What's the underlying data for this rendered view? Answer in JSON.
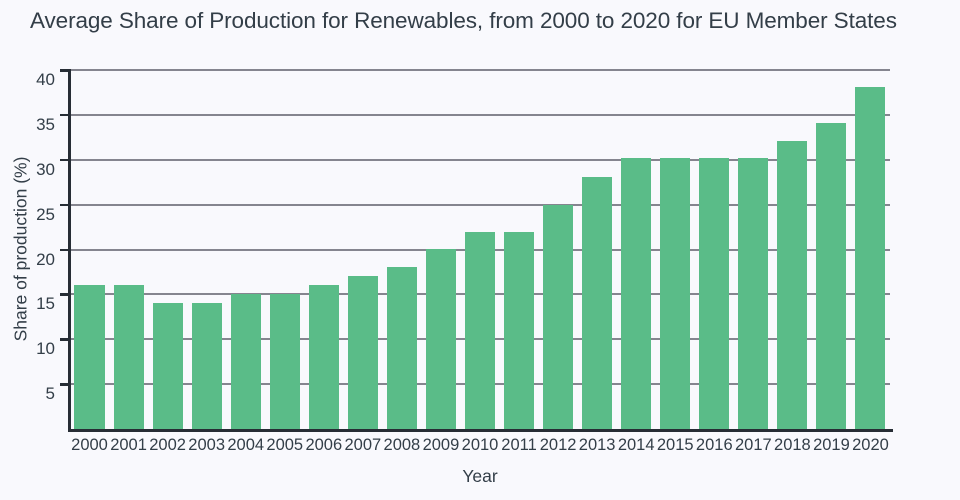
{
  "chart_data": {
    "type": "bar",
    "title": "Average Share of Production for Renewables, from 2000 to 2020 for EU Member States",
    "xlabel": "Year",
    "ylabel": "Share of production (%)",
    "categories": [
      "2000",
      "2001",
      "2002",
      "2003",
      "2004",
      "2005",
      "2006",
      "2007",
      "2008",
      "2009",
      "2010",
      "2011",
      "2012",
      "2013",
      "2014",
      "2015",
      "2016",
      "2017",
      "2018",
      "2019",
      "2020"
    ],
    "values": [
      16.1,
      16.1,
      14.0,
      14.0,
      15.0,
      15.0,
      16.1,
      17.1,
      18.0,
      20.1,
      22.0,
      22.0,
      25.0,
      28.1,
      30.2,
      30.2,
      30.2,
      30.2,
      32.1,
      34.1,
      38.1
    ],
    "ylim": [
      0,
      40
    ],
    "yticks": [
      5,
      10,
      15,
      20,
      25,
      30,
      35,
      40
    ],
    "grid": true,
    "legend": false
  },
  "colors": {
    "background": "#f9f9fd",
    "bar": "#5abc88",
    "gridline": "#85858f",
    "axis": "#272d35",
    "text": "#333e48"
  }
}
